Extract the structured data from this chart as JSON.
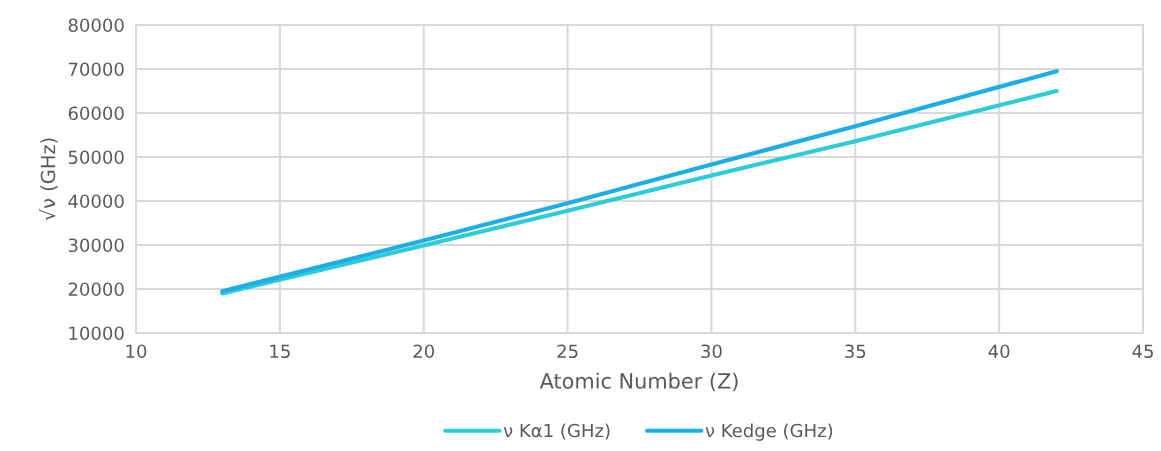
{
  "chart_data": {
    "type": "line",
    "xlabel": "Atomic Number (Z)",
    "ylabel": "√ν (GHz)",
    "x": [
      13,
      20,
      25,
      30,
      35,
      42
    ],
    "series": [
      {
        "name": "ν Kα1 (GHz)",
        "color": "#2ecbd8",
        "values": [
          19000,
          29900,
          37800,
          45800,
          53600,
          65000
        ]
      },
      {
        "name": "ν Kedge (GHz)",
        "color": "#1eaee6",
        "values": [
          19500,
          31000,
          39500,
          48300,
          57000,
          69500
        ]
      }
    ],
    "xlim": [
      10,
      45
    ],
    "xticks": [
      10,
      15,
      20,
      25,
      30,
      35,
      40,
      45
    ],
    "ylim": [
      10000,
      80000
    ],
    "yticks": [
      10000,
      20000,
      30000,
      40000,
      50000,
      60000,
      70000,
      80000
    ],
    "grid": true,
    "legend": "bottom",
    "marker": "none",
    "line_style": "solid"
  }
}
